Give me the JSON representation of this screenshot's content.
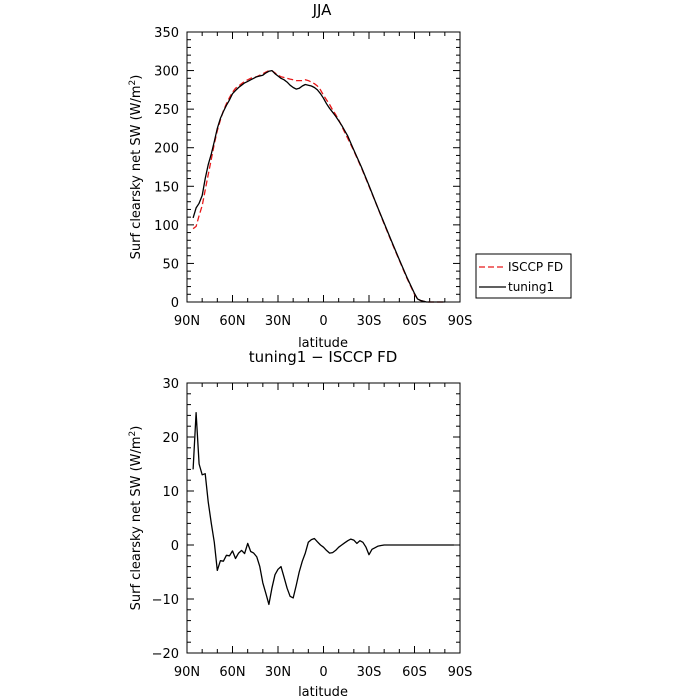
{
  "figure_title": "JJA",
  "chart_data": [
    {
      "type": "line",
      "title": "JJA",
      "xlabel": "latitude",
      "ylabel": "Surf clearsky net SW (W/m²)",
      "ylabel_parts": {
        "main": "Surf clearsky net SW (W/m",
        "sup": "2",
        "tail": ")"
      },
      "x_tick_labels": [
        "90N",
        "60N",
        "30N",
        "0",
        "30S",
        "60S",
        "90S"
      ],
      "x_tick_values": [
        90,
        60,
        30,
        0,
        -30,
        -60,
        -90
      ],
      "xlim": [
        90,
        -90
      ],
      "ylim": [
        0,
        350
      ],
      "y_ticks": [
        0,
        50,
        100,
        150,
        200,
        250,
        300,
        350
      ],
      "y_tick_labels": [
        "0",
        "50",
        "100",
        "150",
        "200",
        "250",
        "300",
        "350"
      ],
      "legend": {
        "placement": "right",
        "entries": [
          "ISCCP FD",
          "tuning1"
        ]
      },
      "series": [
        {
          "name": "ISCCP FD",
          "color": "#e8191a",
          "dash": "dashed",
          "x": [
            86,
            84,
            82,
            80,
            78,
            76,
            74,
            72,
            70,
            68,
            66,
            64,
            62,
            60,
            58,
            56,
            54,
            52,
            50,
            48,
            46,
            44,
            42,
            40,
            38,
            36,
            34,
            32,
            30,
            28,
            26,
            24,
            22,
            20,
            18,
            16,
            14,
            12,
            10,
            8,
            6,
            4,
            2,
            0,
            -2,
            -4,
            -6,
            -8,
            -10,
            -12,
            -14,
            -16,
            -18,
            -20,
            -25,
            -30,
            -35,
            -40,
            -45,
            -50,
            -55,
            -60,
            -62,
            -64,
            -66,
            -68,
            -70,
            -75,
            -80
          ],
          "y": [
            95,
            98,
            112,
            125,
            145,
            165,
            185,
            205,
            222,
            236,
            248,
            257,
            265,
            272,
            277,
            280,
            283,
            286,
            288,
            290,
            291,
            292,
            294,
            296,
            298,
            300,
            300,
            297,
            294,
            292,
            291,
            290,
            289,
            288,
            287,
            287,
            287,
            288,
            287,
            285,
            283,
            280,
            275,
            268,
            262,
            256,
            249,
            243,
            236,
            228,
            220,
            212,
            204,
            196,
            174,
            150,
            126,
            101,
            77,
            54,
            31,
            10,
            4,
            2,
            1,
            0,
            0,
            0,
            0
          ]
        },
        {
          "name": "tuning1",
          "color": "#000000",
          "dash": "solid",
          "x": [
            86,
            84,
            82,
            80,
            78,
            76,
            74,
            72,
            70,
            68,
            66,
            64,
            62,
            60,
            58,
            56,
            54,
            52,
            50,
            48,
            46,
            44,
            42,
            40,
            38,
            36,
            34,
            32,
            30,
            28,
            26,
            24,
            22,
            20,
            18,
            16,
            14,
            12,
            10,
            8,
            6,
            4,
            2,
            0,
            -2,
            -4,
            -6,
            -8,
            -10,
            -12,
            -14,
            -16,
            -18,
            -20,
            -25,
            -30,
            -35,
            -40,
            -45,
            -50,
            -55,
            -60,
            -62,
            -64,
            -66,
            -68,
            -70,
            -75,
            -80
          ],
          "y": [
            109,
            122,
            128,
            138,
            160,
            178,
            192,
            208,
            225,
            238,
            247,
            255,
            262,
            270,
            274,
            278,
            281,
            284,
            286,
            288,
            290,
            292,
            293,
            294,
            297,
            299,
            300,
            296,
            293,
            290,
            288,
            285,
            281,
            278,
            276,
            277,
            280,
            282,
            281,
            280,
            278,
            275,
            270,
            264,
            257,
            251,
            246,
            241,
            235,
            229,
            222,
            215,
            206,
            197,
            175,
            151,
            126,
            102,
            78,
            55,
            32,
            11,
            4,
            2,
            1,
            0,
            0,
            0,
            0
          ]
        }
      ]
    },
    {
      "type": "line",
      "title": "tuning1 − ISCCP FD",
      "xlabel": "latitude",
      "ylabel": "Surf clearsky net SW (W/m²)",
      "ylabel_parts": {
        "main": "Surf clearsky net SW (W/m",
        "sup": "2",
        "tail": ")"
      },
      "x_tick_labels": [
        "90N",
        "60N",
        "30N",
        "0",
        "30S",
        "60S",
        "90S"
      ],
      "x_tick_values": [
        90,
        60,
        30,
        0,
        -30,
        -60,
        -90
      ],
      "xlim": [
        90,
        -90
      ],
      "ylim": [
        -20,
        30
      ],
      "y_ticks": [
        -20,
        -10,
        0,
        10,
        20,
        30
      ],
      "y_tick_labels": [
        "−20",
        "−10",
        "0",
        "10",
        "20",
        "30"
      ],
      "series": [
        {
          "color": "#000000",
          "dash": "solid",
          "x": [
            86,
            84,
            82,
            80,
            78,
            76,
            74,
            72,
            70,
            68,
            66,
            64,
            62,
            60,
            58,
            56,
            54,
            52,
            50,
            48,
            46,
            44,
            42,
            40,
            38,
            36,
            34,
            32,
            30,
            28,
            26,
            24,
            22,
            20,
            18,
            16,
            14,
            12,
            10,
            8,
            6,
            4,
            2,
            0,
            -2,
            -4,
            -6,
            -8,
            -10,
            -12,
            -14,
            -16,
            -18,
            -20,
            -22,
            -24,
            -26,
            -28,
            -30,
            -32,
            -34,
            -36,
            -38,
            -40,
            -42,
            -44,
            -46,
            -48,
            -50,
            -52,
            -54,
            -56,
            -58,
            -60,
            -62,
            -64,
            -66,
            -68,
            -70,
            -75,
            -80,
            -86
          ],
          "y": [
            14,
            24.5,
            15,
            13,
            13.2,
            8,
            4,
            0.5,
            -4.7,
            -2.9,
            -3,
            -1.9,
            -2,
            -1.1,
            -2.5,
            -1.5,
            -1,
            -1.6,
            0.3,
            -1.2,
            -1.5,
            -2.2,
            -4,
            -7,
            -9,
            -11,
            -8,
            -5.5,
            -4.5,
            -4,
            -6,
            -8,
            -9.5,
            -9.8,
            -7.5,
            -5,
            -3,
            -1.5,
            0.5,
            1,
            1.2,
            0.6,
            0,
            -0.4,
            -1,
            -1.5,
            -1.4,
            -1,
            -0.4,
            0,
            0.4,
            0.8,
            1.1,
            0.9,
            0.3,
            0.8,
            0.5,
            -0.4,
            -1.8,
            -0.8,
            -0.5,
            -0.2,
            -0.1,
            0,
            0,
            0,
            0,
            0,
            0,
            0,
            0,
            0,
            0,
            0,
            0,
            0,
            0,
            0,
            0,
            0,
            0,
            0
          ]
        }
      ]
    }
  ]
}
